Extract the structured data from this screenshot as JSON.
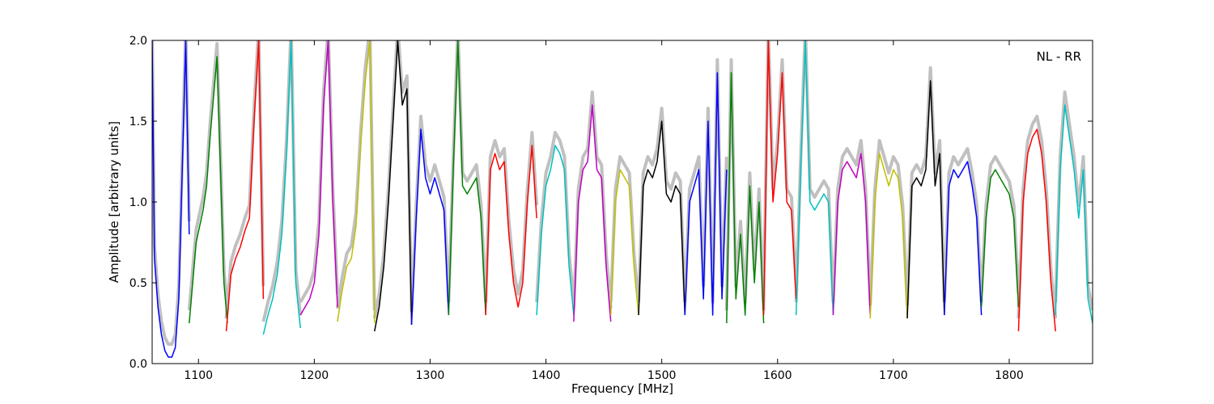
{
  "chart_data": {
    "type": "line",
    "title": "",
    "xlabel": "Frequency [MHz]",
    "ylabel": "Amplitude [arbitrary units]",
    "xlim": [
      1060,
      1872
    ],
    "ylim": [
      0.0,
      2.0
    ],
    "xticks": [
      1100,
      1200,
      1300,
      1400,
      1500,
      1600,
      1700,
      1800
    ],
    "yticks": [
      0.0,
      0.5,
      1.0,
      1.5,
      2.0
    ],
    "ytick_labels": [
      "0.0",
      "0.5",
      "1.0",
      "1.5",
      "2.0"
    ],
    "annotation": "NL - RR",
    "grid": false,
    "background_color": "#c0c0c0",
    "series": [
      {
        "color": "#0000ff",
        "x": [
          1060,
          1062,
          1065,
          1068,
          1071,
          1074,
          1077,
          1080,
          1083,
          1086,
          1089,
          1092
        ],
        "y": [
          2.0,
          0.65,
          0.35,
          0.18,
          0.08,
          0.04,
          0.04,
          0.1,
          0.4,
          1.2,
          2.0,
          0.8
        ]
      },
      {
        "color": "#008000",
        "x": [
          1092,
          1095,
          1098,
          1101,
          1104,
          1107,
          1110,
          1113,
          1116,
          1119,
          1122,
          1125
        ],
        "y": [
          0.25,
          0.5,
          0.75,
          0.85,
          0.95,
          1.1,
          1.4,
          1.65,
          1.9,
          1.2,
          0.5,
          0.25
        ]
      },
      {
        "color": "#ff0000",
        "x": [
          1124,
          1128,
          1132,
          1136,
          1140,
          1144,
          1148,
          1152,
          1156
        ],
        "y": [
          0.2,
          0.55,
          0.65,
          0.72,
          0.82,
          0.9,
          1.5,
          2.0,
          0.4
        ]
      },
      {
        "color": "#00bfbf",
        "x": [
          1156,
          1160,
          1164,
          1168,
          1172,
          1176,
          1180,
          1184,
          1188
        ],
        "y": [
          0.18,
          0.3,
          0.4,
          0.55,
          0.8,
          1.3,
          2.0,
          0.5,
          0.22
        ]
      },
      {
        "color": "#bf00bf",
        "x": [
          1188,
          1192,
          1196,
          1200,
          1204,
          1208,
          1212,
          1216,
          1220
        ],
        "y": [
          0.3,
          0.35,
          0.4,
          0.5,
          0.8,
          1.6,
          2.0,
          1.0,
          0.35
        ]
      },
      {
        "color": "#bfbf00",
        "x": [
          1220,
          1224,
          1228,
          1232,
          1236,
          1240,
          1244,
          1248,
          1252
        ],
        "y": [
          0.26,
          0.45,
          0.6,
          0.65,
          0.85,
          1.35,
          1.75,
          2.0,
          0.25
        ]
      },
      {
        "color": "#000000",
        "x": [
          1252,
          1256,
          1260,
          1264,
          1268,
          1272,
          1276,
          1280,
          1284
        ],
        "y": [
          0.2,
          0.35,
          0.6,
          1.0,
          1.5,
          2.0,
          1.6,
          1.7,
          0.24
        ]
      },
      {
        "color": "#0000ff",
        "x": [
          1284,
          1288,
          1292,
          1296,
          1300,
          1304,
          1308,
          1312,
          1316
        ],
        "y": [
          0.24,
          0.9,
          1.45,
          1.15,
          1.05,
          1.15,
          1.05,
          0.95,
          0.3
        ]
      },
      {
        "color": "#008000",
        "x": [
          1316,
          1320,
          1324,
          1328,
          1332,
          1336,
          1340,
          1344,
          1348
        ],
        "y": [
          0.3,
          1.2,
          2.0,
          1.1,
          1.05,
          1.1,
          1.15,
          0.9,
          0.3
        ]
      },
      {
        "color": "#ff0000",
        "x": [
          1348,
          1352,
          1356,
          1360,
          1364,
          1368,
          1372,
          1376,
          1380,
          1384,
          1388,
          1392
        ],
        "y": [
          0.3,
          1.2,
          1.3,
          1.2,
          1.25,
          0.8,
          0.5,
          0.35,
          0.5,
          1.0,
          1.35,
          0.9
        ]
      },
      {
        "color": "#00bfbf",
        "x": [
          1392,
          1396,
          1400,
          1404,
          1408,
          1412,
          1416,
          1420,
          1424
        ],
        "y": [
          0.3,
          0.8,
          1.1,
          1.2,
          1.35,
          1.3,
          1.2,
          0.6,
          0.3
        ]
      },
      {
        "color": "#bf00bf",
        "x": [
          1424,
          1428,
          1432,
          1436,
          1440,
          1444,
          1448,
          1452,
          1456
        ],
        "y": [
          0.26,
          1.0,
          1.2,
          1.25,
          1.6,
          1.2,
          1.15,
          0.6,
          0.26
        ]
      },
      {
        "color": "#bfbf00",
        "x": [
          1456,
          1460,
          1464,
          1468,
          1472,
          1476,
          1480
        ],
        "y": [
          0.3,
          1.0,
          1.2,
          1.15,
          1.1,
          0.6,
          0.3
        ]
      },
      {
        "color": "#000000",
        "x": [
          1480,
          1484,
          1488,
          1492,
          1496,
          1500,
          1504,
          1508,
          1512,
          1516,
          1520
        ],
        "y": [
          0.3,
          1.1,
          1.2,
          1.15,
          1.25,
          1.5,
          1.05,
          1.0,
          1.1,
          1.05,
          0.3
        ]
      },
      {
        "color": "#0000ff",
        "x": [
          1520,
          1524,
          1528,
          1532,
          1536,
          1540,
          1544,
          1548,
          1552,
          1556
        ],
        "y": [
          0.3,
          1.0,
          1.1,
          1.2,
          0.4,
          1.5,
          0.3,
          1.8,
          0.4,
          1.2
        ]
      },
      {
        "color": "#008000",
        "x": [
          1556,
          1560,
          1564,
          1568,
          1572,
          1576,
          1580,
          1584,
          1588
        ],
        "y": [
          0.25,
          1.8,
          0.4,
          0.8,
          0.3,
          1.1,
          0.5,
          1.0,
          0.25
        ]
      },
      {
        "color": "#ff0000",
        "x": [
          1588,
          1592,
          1596,
          1600,
          1604,
          1608,
          1612,
          1616
        ],
        "y": [
          0.3,
          2.0,
          1.0,
          1.3,
          1.8,
          1.0,
          0.95,
          0.4
        ]
      },
      {
        "color": "#00bfbf",
        "x": [
          1616,
          1620,
          1624,
          1628,
          1632,
          1636,
          1640,
          1644,
          1648
        ],
        "y": [
          0.3,
          1.2,
          2.0,
          1.0,
          0.95,
          1.0,
          1.05,
          1.0,
          0.3
        ]
      },
      {
        "color": "#bf00bf",
        "x": [
          1648,
          1652,
          1656,
          1660,
          1664,
          1668,
          1672,
          1676,
          1680
        ],
        "y": [
          0.3,
          1.0,
          1.2,
          1.25,
          1.2,
          1.15,
          1.3,
          1.0,
          0.3
        ]
      },
      {
        "color": "#bfbf00",
        "x": [
          1680,
          1684,
          1688,
          1692,
          1696,
          1700,
          1704,
          1708,
          1712
        ],
        "y": [
          0.28,
          1.0,
          1.3,
          1.2,
          1.1,
          1.2,
          1.15,
          0.9,
          0.28
        ]
      },
      {
        "color": "#000000",
        "x": [
          1712,
          1716,
          1720,
          1724,
          1728,
          1732,
          1736,
          1740,
          1744
        ],
        "y": [
          0.28,
          1.1,
          1.15,
          1.1,
          1.2,
          1.75,
          1.1,
          1.3,
          0.3
        ]
      },
      {
        "color": "#0000ff",
        "x": [
          1744,
          1748,
          1752,
          1756,
          1760,
          1764,
          1768,
          1772,
          1776
        ],
        "y": [
          0.3,
          1.1,
          1.2,
          1.15,
          1.2,
          1.25,
          1.1,
          0.9,
          0.3
        ]
      },
      {
        "color": "#008000",
        "x": [
          1776,
          1780,
          1784,
          1788,
          1792,
          1796,
          1800,
          1804,
          1808
        ],
        "y": [
          0.35,
          0.9,
          1.15,
          1.2,
          1.15,
          1.1,
          1.05,
          0.9,
          0.35
        ]
      },
      {
        "color": "#ff0000",
        "x": [
          1808,
          1812,
          1816,
          1820,
          1824,
          1828,
          1832,
          1836,
          1840
        ],
        "y": [
          0.2,
          1.0,
          1.3,
          1.4,
          1.45,
          1.3,
          1.0,
          0.5,
          0.2
        ]
      },
      {
        "color": "#00bfbf",
        "x": [
          1840,
          1844,
          1848,
          1852,
          1856,
          1860,
          1864,
          1868,
          1872
        ],
        "y": [
          0.3,
          1.2,
          1.6,
          1.4,
          1.2,
          0.9,
          1.2,
          0.4,
          0.25
        ]
      }
    ]
  }
}
